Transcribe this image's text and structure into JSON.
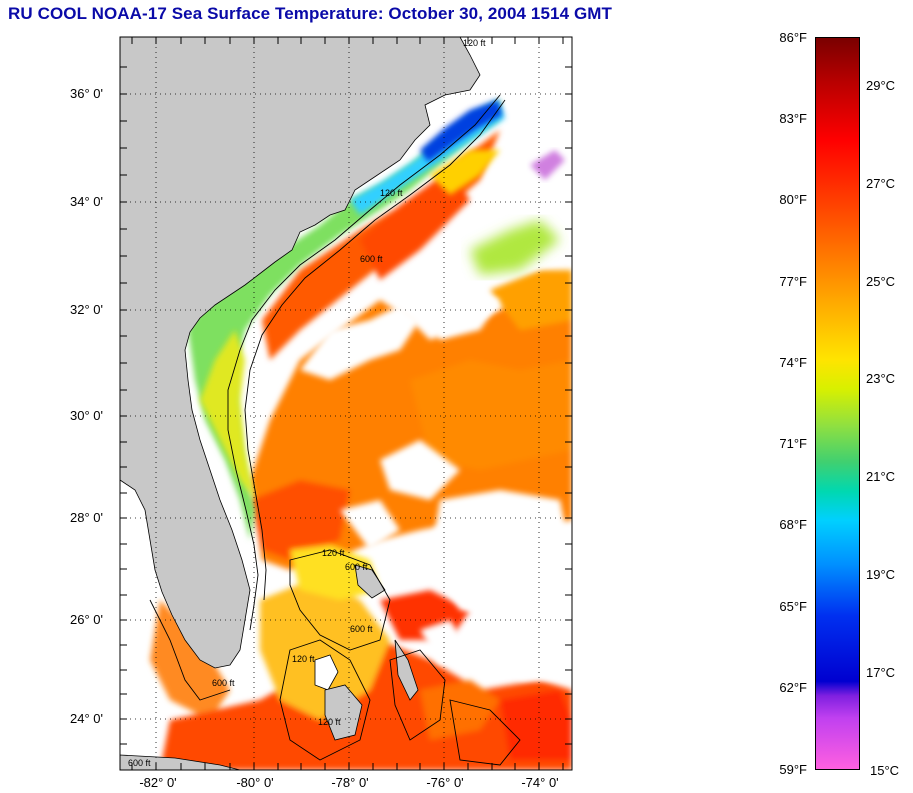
{
  "title": "RU COOL  NOAA-17  Sea Surface Temperature:  October 30, 2004 1514 GMT",
  "map": {
    "lat_labels": [
      "36° 0'",
      "34° 0'",
      "32° 0'",
      "30° 0'",
      "28° 0'",
      "26° 0'",
      "24° 0'"
    ],
    "lon_labels": [
      "-82° 0'",
      "-80° 0'",
      "-78° 0'",
      "-76° 0'",
      "-74° 0'"
    ],
    "contour_labels": [
      "120 ft",
      "600 ft"
    ]
  },
  "colorbar": {
    "fahrenheit": [
      "86°F",
      "83°F",
      "80°F",
      "77°F",
      "74°F",
      "71°F",
      "68°F",
      "65°F",
      "62°F",
      "59°F"
    ],
    "celsius": [
      "29°C",
      "27°C",
      "25°C",
      "23°C",
      "21°C",
      "19°C",
      "17°C",
      "15°C"
    ]
  },
  "colors": {
    "title": "#0a0aa8",
    "land": "#c8c8c8",
    "cloud": "#ffffff",
    "sst_warm": "#ff6a00",
    "sst_cool": "#30e0a0",
    "sst_cold": "#0040e0"
  }
}
